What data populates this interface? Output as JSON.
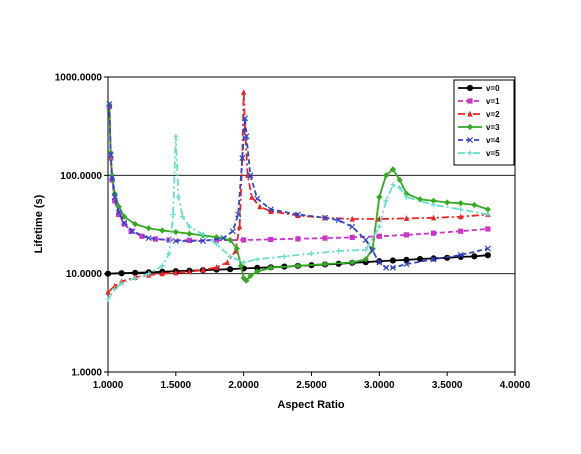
{
  "chart_data": {
    "type": "line",
    "title": "",
    "xlabel": "Aspect Ratio",
    "ylabel": "Lifetime (s)",
    "xlim": [
      1.0,
      4.0
    ],
    "ylim": [
      1.0,
      1000.0
    ],
    "yscale": "log",
    "grid": "horizontal major lines",
    "legend_position": "top-right",
    "x_tick_labels": [
      "1.0000",
      "1.5000",
      "2.0000",
      "2.5000",
      "3.0000",
      "3.5000",
      "4.0000"
    ],
    "y_tick_labels": [
      "1.0000",
      "10.0000",
      "100.0000",
      "1000.0000"
    ],
    "x_ticks": [
      1.0,
      1.5,
      2.0,
      2.5,
      3.0,
      3.5,
      4.0
    ],
    "y_ticks": [
      1,
      10,
      100,
      1000
    ],
    "series": [
      {
        "name": "v=0",
        "color": "#000000",
        "marker": "circle",
        "dash": "solid",
        "points": [
          [
            1.0,
            10.0
          ],
          [
            1.1,
            10.1
          ],
          [
            1.2,
            10.2
          ],
          [
            1.3,
            10.3
          ],
          [
            1.4,
            10.45
          ],
          [
            1.5,
            10.6
          ],
          [
            1.6,
            10.7
          ],
          [
            1.7,
            10.85
          ],
          [
            1.8,
            11.0
          ],
          [
            1.9,
            11.1
          ],
          [
            2.0,
            11.3
          ],
          [
            2.1,
            11.45
          ],
          [
            2.2,
            11.6
          ],
          [
            2.3,
            11.8
          ],
          [
            2.4,
            12.0
          ],
          [
            2.5,
            12.2
          ],
          [
            2.6,
            12.4
          ],
          [
            2.7,
            12.6
          ],
          [
            2.8,
            12.9
          ],
          [
            2.9,
            13.1
          ],
          [
            3.0,
            13.4
          ],
          [
            3.1,
            13.6
          ],
          [
            3.2,
            13.8
          ],
          [
            3.3,
            14.1
          ],
          [
            3.4,
            14.3
          ],
          [
            3.5,
            14.5
          ],
          [
            3.6,
            14.8
          ],
          [
            3.7,
            15.0
          ],
          [
            3.8,
            15.4
          ]
        ]
      },
      {
        "name": "v=1",
        "color": "#cc33cc",
        "marker": "square",
        "dash": "dash",
        "points": [
          [
            1.01,
            500.0
          ],
          [
            1.02,
            150.0
          ],
          [
            1.03,
            90.0
          ],
          [
            1.05,
            55.0
          ],
          [
            1.08,
            40.0
          ],
          [
            1.12,
            32.0
          ],
          [
            1.17,
            27.0
          ],
          [
            1.25,
            24.0
          ],
          [
            1.35,
            22.5
          ],
          [
            1.45,
            22.0
          ],
          [
            1.6,
            21.8
          ],
          [
            1.8,
            21.9
          ],
          [
            2.0,
            22.0
          ],
          [
            2.2,
            22.3
          ],
          [
            2.4,
            22.6
          ],
          [
            2.6,
            23.0
          ],
          [
            2.8,
            23.4
          ],
          [
            3.0,
            24.0
          ],
          [
            3.2,
            24.8
          ],
          [
            3.4,
            25.8
          ],
          [
            3.6,
            27.0
          ],
          [
            3.8,
            28.5
          ]
        ]
      },
      {
        "name": "v=2",
        "color": "#ee2222",
        "marker": "triangle",
        "dash": "dashdot",
        "points": [
          [
            1.0,
            6.5
          ],
          [
            1.05,
            7.5
          ],
          [
            1.1,
            8.3
          ],
          [
            1.2,
            9.2
          ],
          [
            1.3,
            9.7
          ],
          [
            1.4,
            10.0
          ],
          [
            1.5,
            10.2
          ],
          [
            1.6,
            10.5
          ],
          [
            1.7,
            10.9
          ],
          [
            1.8,
            11.6
          ],
          [
            1.88,
            13.0
          ],
          [
            1.94,
            17.0
          ],
          [
            1.97,
            30.0
          ],
          [
            1.99,
            150.0
          ],
          [
            2.0,
            700.0
          ],
          [
            2.01,
            300.0
          ],
          [
            2.03,
            100.0
          ],
          [
            2.06,
            60.0
          ],
          [
            2.12,
            48.0
          ],
          [
            2.2,
            43.0
          ],
          [
            2.4,
            39.0
          ],
          [
            2.6,
            37.0
          ],
          [
            2.8,
            36.0
          ],
          [
            3.0,
            36.0
          ],
          [
            3.2,
            36.5
          ],
          [
            3.4,
            37.0
          ],
          [
            3.6,
            38.0
          ],
          [
            3.8,
            40.0
          ]
        ]
      },
      {
        "name": "v=3",
        "color": "#33aa22",
        "marker": "diamond",
        "dash": "solid",
        "points": [
          [
            1.01,
            520.0
          ],
          [
            1.02,
            170.0
          ],
          [
            1.03,
            100.0
          ],
          [
            1.05,
            65.0
          ],
          [
            1.08,
            48.0
          ],
          [
            1.12,
            38.0
          ],
          [
            1.2,
            32.0
          ],
          [
            1.3,
            29.0
          ],
          [
            1.4,
            27.5
          ],
          [
            1.5,
            26.5
          ],
          [
            1.6,
            25.5
          ],
          [
            1.7,
            24.5
          ],
          [
            1.8,
            23.5
          ],
          [
            1.9,
            22.0
          ],
          [
            1.95,
            18.0
          ],
          [
            1.98,
            12.0
          ],
          [
            2.0,
            9.0
          ],
          [
            2.02,
            8.5
          ],
          [
            2.05,
            9.5
          ],
          [
            2.1,
            10.5
          ],
          [
            2.2,
            11.5
          ],
          [
            2.4,
            12.0
          ],
          [
            2.6,
            12.5
          ],
          [
            2.8,
            13.0
          ],
          [
            2.9,
            14.0
          ],
          [
            2.95,
            18.0
          ],
          [
            3.0,
            60.0
          ],
          [
            3.05,
            100.0
          ],
          [
            3.1,
            115.0
          ],
          [
            3.15,
            90.0
          ],
          [
            3.2,
            65.0
          ],
          [
            3.3,
            57.0
          ],
          [
            3.4,
            55.0
          ],
          [
            3.5,
            53.0
          ],
          [
            3.6,
            52.0
          ],
          [
            3.7,
            50.0
          ],
          [
            3.8,
            45.0
          ]
        ]
      },
      {
        "name": "v=4",
        "color": "#3344cc",
        "marker": "x",
        "dash": "dash",
        "points": [
          [
            1.01,
            530.0
          ],
          [
            1.02,
            160.0
          ],
          [
            1.03,
            95.0
          ],
          [
            1.05,
            60.0
          ],
          [
            1.08,
            42.0
          ],
          [
            1.12,
            33.0
          ],
          [
            1.18,
            27.0
          ],
          [
            1.3,
            23.0
          ],
          [
            1.5,
            21.5
          ],
          [
            1.7,
            21.5
          ],
          [
            1.85,
            23.0
          ],
          [
            1.92,
            27.0
          ],
          [
            1.96,
            40.0
          ],
          [
            1.99,
            150.0
          ],
          [
            2.01,
            380.0
          ],
          [
            2.02,
            250.0
          ],
          [
            2.05,
            100.0
          ],
          [
            2.1,
            58.0
          ],
          [
            2.2,
            45.0
          ],
          [
            2.4,
            40.0
          ],
          [
            2.6,
            37.0
          ],
          [
            2.7,
            35.0
          ],
          [
            2.8,
            30.0
          ],
          [
            2.9,
            22.0
          ],
          [
            2.95,
            17.0
          ],
          [
            3.0,
            13.0
          ],
          [
            3.05,
            11.5
          ],
          [
            3.1,
            11.5
          ],
          [
            3.2,
            12.5
          ],
          [
            3.4,
            14.0
          ],
          [
            3.6,
            15.5
          ],
          [
            3.8,
            18.0
          ]
        ]
      },
      {
        "name": "v=5",
        "color": "#66ddcc",
        "marker": "plus",
        "dash": "dashdot",
        "points": [
          [
            1.0,
            5.5
          ],
          [
            1.05,
            7.0
          ],
          [
            1.1,
            8.0
          ],
          [
            1.2,
            9.0
          ],
          [
            1.3,
            10.0
          ],
          [
            1.4,
            12.0
          ],
          [
            1.45,
            16.0
          ],
          [
            1.48,
            40.0
          ],
          [
            1.5,
            250.0
          ],
          [
            1.52,
            60.0
          ],
          [
            1.55,
            38.0
          ],
          [
            1.6,
            30.0
          ],
          [
            1.7,
            25.0
          ],
          [
            1.8,
            20.0
          ],
          [
            1.9,
            15.0
          ],
          [
            2.0,
            13.0
          ],
          [
            2.1,
            14.0
          ],
          [
            2.3,
            15.0
          ],
          [
            2.5,
            16.0
          ],
          [
            2.7,
            17.0
          ],
          [
            2.9,
            17.5
          ],
          [
            3.0,
            30.0
          ],
          [
            3.05,
            55.0
          ],
          [
            3.1,
            80.0
          ],
          [
            3.15,
            75.0
          ],
          [
            3.2,
            60.0
          ],
          [
            3.4,
            50.0
          ],
          [
            3.6,
            45.0
          ],
          [
            3.8,
            40.0
          ]
        ]
      }
    ]
  }
}
